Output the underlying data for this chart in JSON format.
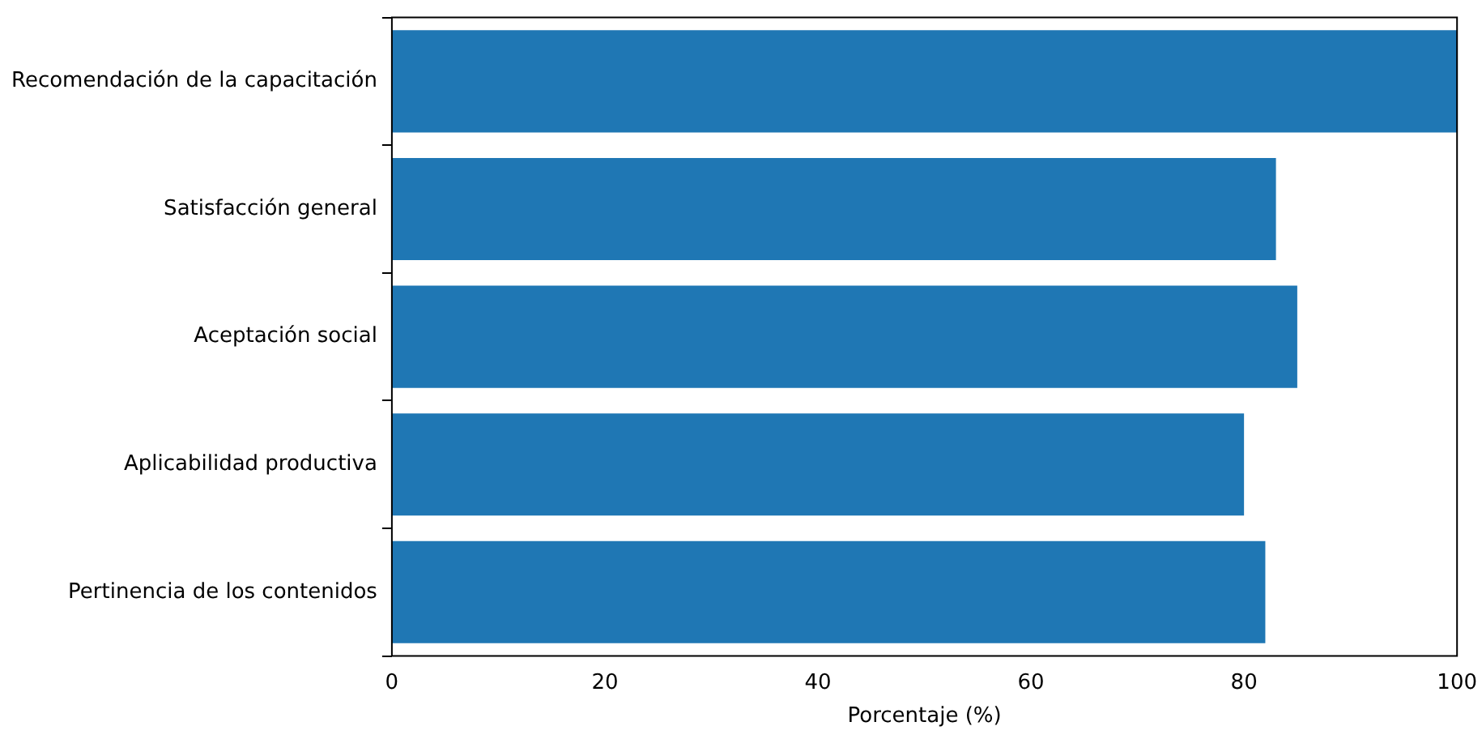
{
  "chart_data": {
    "type": "bar",
    "orientation": "horizontal",
    "xlabel": "Porcentaje (%)",
    "categories": [
      "Recomendación de la capacitación",
      "Satisfacción general",
      "Aceptación social",
      "Aplicabilidad productiva",
      "Pertinencia de los contenidos"
    ],
    "values": [
      100,
      83,
      85,
      80,
      82
    ],
    "color": "#1f77b4",
    "xlim": [
      0,
      100
    ],
    "xticks": [
      0,
      20,
      40,
      60,
      80,
      100
    ],
    "grid": false,
    "legend": false
  }
}
